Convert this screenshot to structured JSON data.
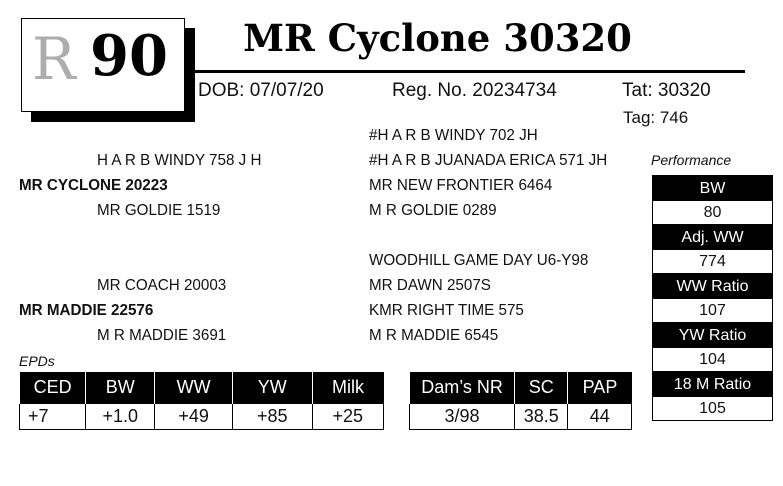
{
  "lot": {
    "logo": "R",
    "number": "90"
  },
  "title": "MR Cyclone 30320",
  "info": {
    "dob": "DOB: 07/07/20",
    "reg": "Reg. No. 20234734",
    "tat": "Tat: 30320",
    "tag": "Tag: 746"
  },
  "pedigree": {
    "sire": "MR CYCLONE 20223",
    "sire_sire": "H A R B WINDY 758 J H",
    "sire_dam": "MR GOLDIE 1519",
    "sss": "#H A R B WINDY 702 JH",
    "ssd": "#H A R B JUANADA ERICA 571 JH",
    "sds": "MR NEW FRONTIER 6464",
    "sdd": "M R GOLDIE 0289",
    "dam": "MR MADDIE 22576",
    "dam_sire": "MR COACH 20003",
    "dam_dam": "M R MADDIE 3691",
    "dss": "WOODHILL GAME DAY U6-Y98",
    "dsd": "MR DAWN 2507S",
    "dds": "KMR RIGHT TIME 575",
    "ddd": "M R MADDIE 6545"
  },
  "performance": {
    "label": "Performance",
    "items": [
      {
        "label": "BW",
        "value": "80"
      },
      {
        "label": "Adj. WW",
        "value": "774"
      },
      {
        "label": "WW Ratio",
        "value": "107"
      },
      {
        "label": "YW Ratio",
        "value": "104"
      },
      {
        "label": "18 M Ratio",
        "value": "105"
      }
    ]
  },
  "epds": {
    "label": "EPDs",
    "headers": [
      "CED",
      "BW",
      "WW",
      "YW",
      "Milk"
    ],
    "values": [
      "+7",
      "+1.0",
      "+49",
      "+85",
      "+25"
    ]
  },
  "dam_stats": {
    "headers": [
      "Dam’s NR",
      "SC",
      "PAP"
    ],
    "values": [
      "3/98",
      "38.5",
      "44"
    ]
  }
}
